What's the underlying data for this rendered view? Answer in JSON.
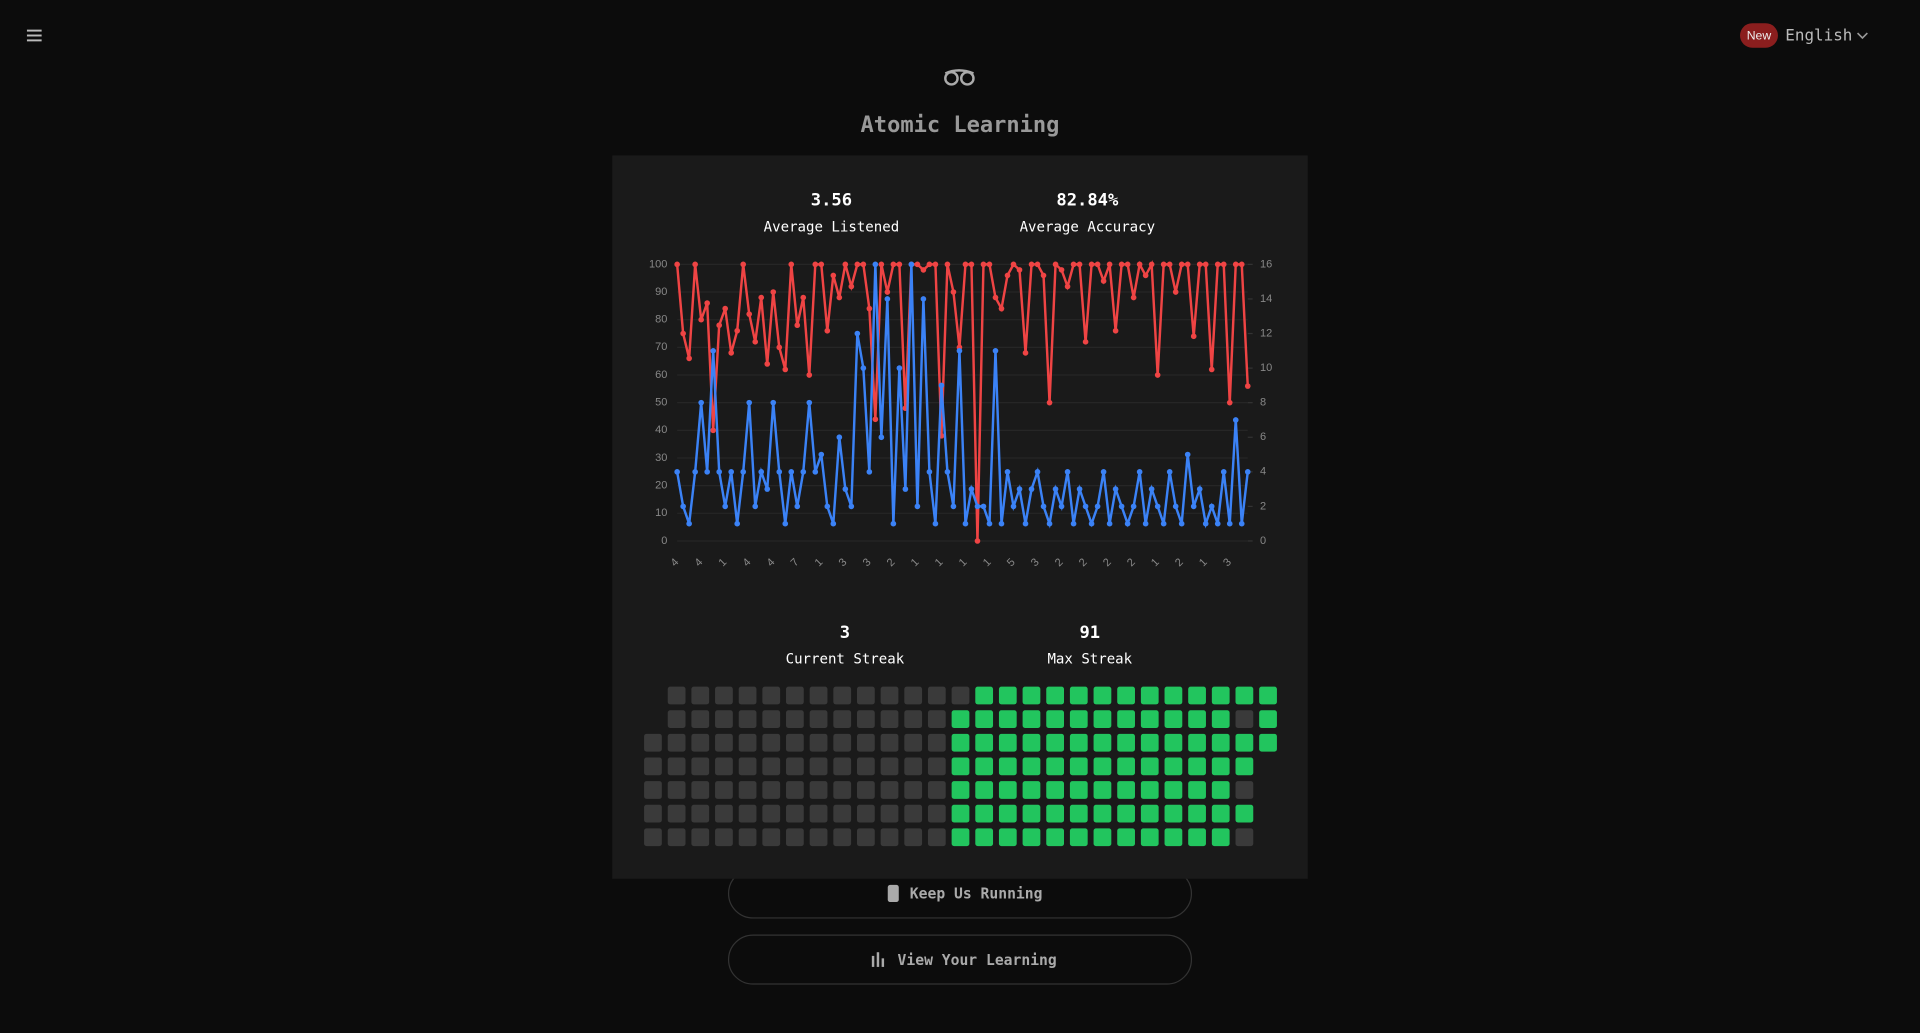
{
  "header": {
    "badge": "New",
    "language": "English"
  },
  "app": {
    "title": "Atomic Learning"
  },
  "stats": [
    {
      "value": "3.56",
      "label": "Average Listened"
    },
    {
      "value": "82.84%",
      "label": "Average Accuracy"
    }
  ],
  "chart_data": {
    "type": "line",
    "categories": [
      "4",
      null,
      null,
      null,
      "4",
      null,
      null,
      null,
      "1",
      null,
      null,
      null,
      "4",
      null,
      null,
      null,
      "4",
      null,
      null,
      null,
      "7",
      null,
      null,
      null,
      "1",
      null,
      null,
      null,
      "3",
      null,
      null,
      null,
      "3",
      null,
      null,
      null,
      "2",
      null,
      null,
      null,
      "1",
      null,
      null,
      null,
      "1",
      null,
      null,
      null,
      "1",
      null,
      null,
      null,
      "1",
      null,
      null,
      null,
      "5",
      null,
      null,
      null,
      "3",
      null,
      null,
      null,
      "2",
      null,
      null,
      null,
      "2",
      null,
      null,
      null,
      "2",
      null,
      null,
      null,
      "2",
      null,
      null,
      null,
      "1",
      null,
      null,
      null,
      "2",
      null,
      null,
      null,
      "1",
      null,
      null,
      null,
      "3",
      null,
      null,
      null
    ],
    "series": [
      {
        "color": "#ef4444",
        "values": [
          100,
          75,
          66,
          100,
          80,
          86,
          40,
          78,
          84,
          68,
          76,
          100,
          82,
          72,
          88,
          64,
          90,
          70,
          62,
          100,
          78,
          88,
          60,
          100,
          100,
          76,
          96,
          88,
          100,
          92,
          100,
          100,
          84,
          44,
          100,
          90,
          100,
          100,
          48,
          100,
          100,
          98,
          100,
          100,
          38,
          100,
          90,
          70,
          100,
          100,
          0,
          100,
          100,
          88,
          84,
          96,
          100,
          98,
          68,
          100,
          100,
          96,
          50,
          100,
          98,
          92,
          100,
          100,
          72,
          100,
          100,
          94,
          100,
          76,
          100,
          100,
          88,
          100,
          96,
          100,
          60,
          100,
          100,
          90,
          100,
          100,
          74,
          100,
          100,
          62,
          100,
          100,
          50,
          100,
          100,
          56
        ]
      },
      {
        "color": "#3b82f6",
        "axis": "y2",
        "values": [
          4,
          2,
          1,
          4,
          8,
          4,
          11,
          4,
          2,
          4,
          1,
          4,
          8,
          2,
          4,
          3,
          8,
          4,
          1,
          4,
          2,
          4,
          8,
          4,
          5,
          2,
          1,
          6,
          3,
          2,
          12,
          10,
          4,
          16,
          6,
          14,
          1,
          10,
          3,
          16,
          2,
          14,
          4,
          1,
          9,
          4,
          2,
          11,
          1,
          3,
          2,
          2,
          1,
          11,
          1,
          4,
          2,
          3,
          1,
          3,
          4,
          2,
          1,
          3,
          2,
          4,
          1,
          3,
          2,
          1,
          2,
          4,
          1,
          3,
          2,
          1,
          2,
          4,
          1,
          3,
          2,
          1,
          4,
          2,
          1,
          5,
          2,
          3,
          1,
          2,
          1,
          4,
          1,
          7,
          1,
          4
        ]
      }
    ],
    "ylim": [
      0,
      100
    ],
    "yticks": [
      0,
      10,
      20,
      30,
      40,
      50,
      60,
      70,
      80,
      90,
      100
    ],
    "y2lim": [
      0,
      16
    ],
    "y2ticks": [
      0,
      2,
      4,
      6,
      8,
      10,
      12,
      14,
      16
    ],
    "grid": true
  },
  "streaks": [
    {
      "value": "3",
      "label": "Current Streak"
    },
    {
      "value": "91",
      "label": "Max Streak"
    }
  ],
  "activity": {
    "active_color": "#22c55e",
    "inactive_color": "#3a3a3a",
    "rows": [
      [
        null,
        0,
        0,
        0,
        0,
        0,
        0,
        0,
        0,
        0,
        0,
        0,
        0,
        0,
        1,
        1,
        1,
        1,
        1,
        1,
        1,
        1,
        1,
        1,
        1,
        1,
        1
      ],
      [
        null,
        0,
        0,
        0,
        0,
        0,
        0,
        0,
        0,
        0,
        0,
        0,
        0,
        1,
        1,
        1,
        1,
        1,
        1,
        1,
        1,
        1,
        1,
        1,
        1,
        0,
        1
      ],
      [
        0,
        0,
        0,
        0,
        0,
        0,
        0,
        0,
        0,
        0,
        0,
        0,
        0,
        1,
        1,
        1,
        1,
        1,
        1,
        1,
        1,
        1,
        1,
        1,
        1,
        1,
        1
      ],
      [
        0,
        0,
        0,
        0,
        0,
        0,
        0,
        0,
        0,
        0,
        0,
        0,
        0,
        1,
        1,
        1,
        1,
        1,
        1,
        1,
        1,
        1,
        1,
        1,
        1,
        1,
        null
      ],
      [
        0,
        0,
        0,
        0,
        0,
        0,
        0,
        0,
        0,
        0,
        0,
        0,
        0,
        1,
        1,
        1,
        1,
        1,
        1,
        1,
        1,
        1,
        1,
        1,
        1,
        0,
        null
      ],
      [
        0,
        0,
        0,
        0,
        0,
        0,
        0,
        0,
        0,
        0,
        0,
        0,
        0,
        1,
        1,
        1,
        1,
        1,
        1,
        1,
        1,
        1,
        1,
        1,
        1,
        1,
        null
      ],
      [
        0,
        0,
        0,
        0,
        0,
        0,
        0,
        0,
        0,
        0,
        0,
        0,
        0,
        1,
        1,
        1,
        1,
        1,
        1,
        1,
        1,
        1,
        1,
        1,
        1,
        0,
        null
      ]
    ]
  },
  "buttons": [
    "Keep Us Running",
    "View Your Learning"
  ]
}
